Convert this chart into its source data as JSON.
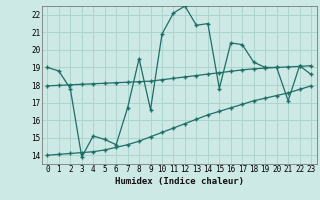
{
  "xlabel": "Humidex (Indice chaleur)",
  "xlim": [
    -0.5,
    23.5
  ],
  "ylim": [
    13.5,
    22.5
  ],
  "yticks": [
    14,
    15,
    16,
    17,
    18,
    19,
    20,
    21,
    22
  ],
  "xticks": [
    0,
    1,
    2,
    3,
    4,
    5,
    6,
    7,
    8,
    9,
    10,
    11,
    12,
    13,
    14,
    15,
    16,
    17,
    18,
    19,
    20,
    21,
    22,
    23
  ],
  "bg_color": "#cce9e6",
  "grid_color": "#aed4d0",
  "line_color": "#1e6e65",
  "line1_x": [
    0,
    1,
    2,
    3,
    4,
    5,
    6,
    7,
    8,
    9,
    10,
    11,
    12,
    13,
    14,
    15,
    16,
    17,
    18,
    19,
    20,
    21,
    22,
    23
  ],
  "line1_y": [
    19.0,
    18.8,
    17.8,
    13.9,
    15.1,
    14.9,
    14.6,
    16.7,
    19.5,
    16.6,
    20.9,
    22.1,
    22.5,
    21.4,
    21.5,
    17.8,
    20.4,
    20.3,
    19.3,
    19.0,
    19.0,
    17.1,
    19.1,
    18.6
  ],
  "line2_x": [
    0,
    1,
    2,
    3,
    4,
    5,
    6,
    7,
    8,
    9,
    10,
    11,
    12,
    13,
    14,
    15,
    16,
    17,
    18,
    19,
    20,
    21,
    22,
    23
  ],
  "line2_y": [
    17.95,
    17.98,
    18.01,
    18.04,
    18.07,
    18.1,
    18.13,
    18.16,
    18.19,
    18.22,
    18.3,
    18.38,
    18.46,
    18.54,
    18.62,
    18.7,
    18.78,
    18.86,
    18.92,
    18.96,
    19.0,
    19.03,
    19.06,
    19.1
  ],
  "line3_x": [
    0,
    1,
    2,
    3,
    4,
    5,
    6,
    7,
    8,
    9,
    10,
    11,
    12,
    13,
    14,
    15,
    16,
    17,
    18,
    19,
    20,
    21,
    22,
    23
  ],
  "line3_y": [
    14.0,
    14.05,
    14.1,
    14.15,
    14.2,
    14.3,
    14.45,
    14.6,
    14.8,
    15.05,
    15.3,
    15.55,
    15.8,
    16.05,
    16.3,
    16.5,
    16.7,
    16.9,
    17.1,
    17.25,
    17.4,
    17.55,
    17.75,
    17.95
  ]
}
